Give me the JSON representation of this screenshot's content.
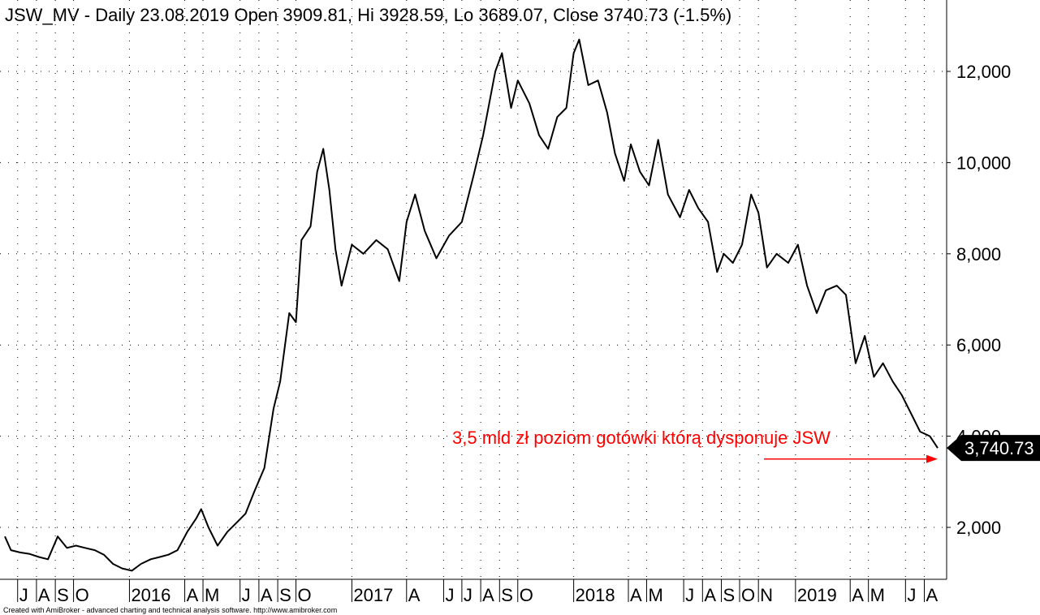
{
  "chart_data": {
    "type": "line",
    "title": "JSW_MV - Daily 23.08.2019 Open 3909.81, Hi 3928.59, Lo 3689.07, Close 3740.73 (-1.5%)",
    "ylim": [
      700,
      13600
    ],
    "yticks": [
      {
        "value": 2000,
        "label": "2,000"
      },
      {
        "value": 4000,
        "label": "4,000"
      },
      {
        "value": 6000,
        "label": "6,000"
      },
      {
        "value": 8000,
        "label": "8,000"
      },
      {
        "value": 10000,
        "label": "10,000"
      },
      {
        "value": 12000,
        "label": "12,000"
      }
    ],
    "xticks": [
      {
        "date": "2015-07-01",
        "label": "J"
      },
      {
        "date": "2015-08-01",
        "label": "A"
      },
      {
        "date": "2015-09-01",
        "label": "S"
      },
      {
        "date": "2015-10-01",
        "label": "O"
      },
      {
        "date": "2016-01-01",
        "label": "2016"
      },
      {
        "date": "2016-04-01",
        "label": "A"
      },
      {
        "date": "2016-05-01",
        "label": "M"
      },
      {
        "date": "2016-07-01",
        "label": "J"
      },
      {
        "date": "2016-08-01",
        "label": "A"
      },
      {
        "date": "2016-09-01",
        "label": "S"
      },
      {
        "date": "2016-10-01",
        "label": "O"
      },
      {
        "date": "2017-01-01",
        "label": "2017"
      },
      {
        "date": "2017-04-01",
        "label": "A"
      },
      {
        "date": "2017-06-01",
        "label": "J"
      },
      {
        "date": "2017-07-01",
        "label": "J"
      },
      {
        "date": "2017-08-01",
        "label": "A"
      },
      {
        "date": "2017-09-01",
        "label": "S"
      },
      {
        "date": "2017-10-01",
        "label": "O"
      },
      {
        "date": "2018-01-01",
        "label": "2018"
      },
      {
        "date": "2018-04-01",
        "label": "A"
      },
      {
        "date": "2018-05-01",
        "label": "M"
      },
      {
        "date": "2018-07-01",
        "label": "J"
      },
      {
        "date": "2018-08-01",
        "label": "A"
      },
      {
        "date": "2018-09-01",
        "label": "S"
      },
      {
        "date": "2018-10-01",
        "label": "O"
      },
      {
        "date": "2018-11-01",
        "label": "N"
      },
      {
        "date": "2019-01-01",
        "label": "2019"
      },
      {
        "date": "2019-04-01",
        "label": "A"
      },
      {
        "date": "2019-05-01",
        "label": "M"
      },
      {
        "date": "2019-07-01",
        "label": "J"
      },
      {
        "date": "2019-08-01",
        "label": "A"
      }
    ],
    "series": [
      {
        "color": "#000000",
        "points": [
          [
            "2015-06-10",
            1800
          ],
          [
            "2015-06-20",
            1500
          ],
          [
            "2015-07-05",
            1450
          ],
          [
            "2015-07-20",
            1420
          ],
          [
            "2015-08-05",
            1350
          ],
          [
            "2015-08-20",
            1300
          ],
          [
            "2015-09-05",
            1800
          ],
          [
            "2015-09-20",
            1550
          ],
          [
            "2015-10-05",
            1600
          ],
          [
            "2015-10-20",
            1550
          ],
          [
            "2015-11-05",
            1500
          ],
          [
            "2015-11-20",
            1400
          ],
          [
            "2015-12-05",
            1200
          ],
          [
            "2015-12-20",
            1100
          ],
          [
            "2016-01-05",
            1050
          ],
          [
            "2016-01-20",
            1200
          ],
          [
            "2016-02-05",
            1300
          ],
          [
            "2016-02-20",
            1350
          ],
          [
            "2016-03-05",
            1400
          ],
          [
            "2016-03-20",
            1500
          ],
          [
            "2016-04-05",
            1900
          ],
          [
            "2016-04-20",
            2200
          ],
          [
            "2016-04-28",
            2400
          ],
          [
            "2016-05-10",
            2000
          ],
          [
            "2016-05-25",
            1600
          ],
          [
            "2016-06-10",
            1900
          ],
          [
            "2016-06-25",
            2100
          ],
          [
            "2016-07-10",
            2300
          ],
          [
            "2016-07-25",
            2800
          ],
          [
            "2016-08-10",
            3300
          ],
          [
            "2016-08-25",
            4600
          ],
          [
            "2016-09-05",
            5200
          ],
          [
            "2016-09-20",
            6700
          ],
          [
            "2016-10-01",
            6500
          ],
          [
            "2016-10-10",
            8300
          ],
          [
            "2016-10-25",
            8600
          ],
          [
            "2016-11-05",
            9800
          ],
          [
            "2016-11-15",
            10300
          ],
          [
            "2016-11-25",
            9400
          ],
          [
            "2016-12-05",
            8100
          ],
          [
            "2016-12-15",
            7300
          ],
          [
            "2017-01-01",
            8200
          ],
          [
            "2017-01-20",
            8000
          ],
          [
            "2017-02-10",
            8300
          ],
          [
            "2017-03-01",
            8100
          ],
          [
            "2017-03-20",
            7400
          ],
          [
            "2017-04-01",
            8700
          ],
          [
            "2017-04-15",
            9300
          ],
          [
            "2017-05-01",
            8500
          ],
          [
            "2017-05-20",
            7900
          ],
          [
            "2017-06-10",
            8400
          ],
          [
            "2017-07-01",
            8700
          ],
          [
            "2017-07-20",
            9700
          ],
          [
            "2017-08-05",
            10600
          ],
          [
            "2017-08-25",
            12000
          ],
          [
            "2017-09-05",
            12400
          ],
          [
            "2017-09-20",
            11200
          ],
          [
            "2017-10-01",
            11800
          ],
          [
            "2017-10-20",
            11300
          ],
          [
            "2017-11-05",
            10600
          ],
          [
            "2017-11-20",
            10300
          ],
          [
            "2017-12-05",
            11000
          ],
          [
            "2017-12-20",
            11200
          ],
          [
            "2018-01-01",
            12400
          ],
          [
            "2018-01-10",
            12700
          ],
          [
            "2018-01-25",
            11700
          ],
          [
            "2018-02-10",
            11800
          ],
          [
            "2018-02-25",
            11100
          ],
          [
            "2018-03-10",
            10200
          ],
          [
            "2018-03-25",
            9600
          ],
          [
            "2018-04-05",
            10400
          ],
          [
            "2018-04-20",
            9800
          ],
          [
            "2018-05-05",
            9500
          ],
          [
            "2018-05-20",
            10500
          ],
          [
            "2018-06-05",
            9300
          ],
          [
            "2018-06-25",
            8800
          ],
          [
            "2018-07-10",
            9400
          ],
          [
            "2018-07-25",
            9000
          ],
          [
            "2018-08-10",
            8700
          ],
          [
            "2018-08-25",
            7600
          ],
          [
            "2018-09-05",
            8000
          ],
          [
            "2018-09-20",
            7800
          ],
          [
            "2018-10-05",
            8200
          ],
          [
            "2018-10-20",
            9300
          ],
          [
            "2018-11-01",
            8900
          ],
          [
            "2018-11-15",
            7700
          ],
          [
            "2018-12-01",
            8000
          ],
          [
            "2018-12-20",
            7800
          ],
          [
            "2019-01-05",
            8200
          ],
          [
            "2019-01-20",
            7300
          ],
          [
            "2019-02-05",
            6700
          ],
          [
            "2019-02-20",
            7200
          ],
          [
            "2019-03-10",
            7300
          ],
          [
            "2019-03-25",
            7100
          ],
          [
            "2019-04-10",
            5600
          ],
          [
            "2019-04-25",
            6200
          ],
          [
            "2019-05-10",
            5300
          ],
          [
            "2019-05-25",
            5600
          ],
          [
            "2019-06-10",
            5200
          ],
          [
            "2019-06-25",
            4900
          ],
          [
            "2019-07-10",
            4500
          ],
          [
            "2019-07-25",
            4100
          ],
          [
            "2019-08-10",
            4000
          ],
          [
            "2019-08-23",
            3740
          ]
        ]
      }
    ],
    "last_value": {
      "value": 3740.73,
      "label": "3,740.73"
    },
    "annotation": {
      "text": "3,5 mld zł poziom gotówki którą dysponuje JSW",
      "color": "#ff0000",
      "arrow_value": 3500
    },
    "grid": true,
    "credit": "Created with AmiBroker - advanced charting and technical analysis software. http://www.amibroker.com"
  }
}
